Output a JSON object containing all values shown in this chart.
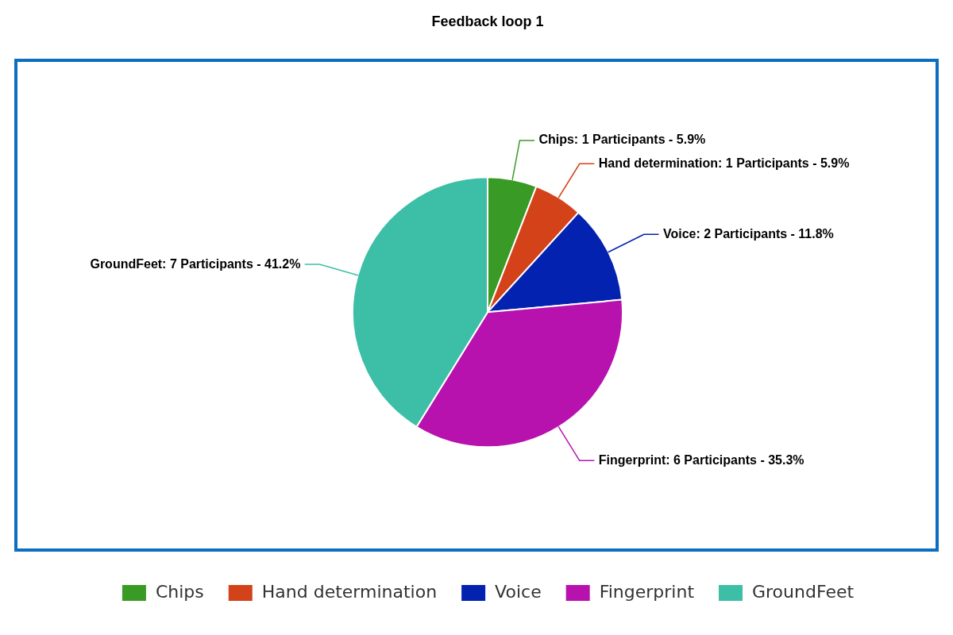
{
  "chart_data": {
    "type": "pie",
    "title": "Feedback loop 1",
    "categories": [
      "Chips",
      "Hand determination",
      "Voice",
      "Fingerprint",
      "GroundFeet"
    ],
    "values": [
      1,
      1,
      2,
      6,
      7
    ],
    "colors": [
      "#3a9a26",
      "#d4421a",
      "#0422b0",
      "#b812ae",
      "#3cbfa6"
    ],
    "value_labels": [
      "Chips: 1 Participants - 5.9%",
      "Hand determination: 1 Participants - 5.9%",
      "Voice: 2 Participants - 11.8%",
      "Fingerprint: 6 Participants - 35.3%",
      "GroundFeet: 7 Participants - 41.2%"
    ],
    "legend": "bottom"
  }
}
